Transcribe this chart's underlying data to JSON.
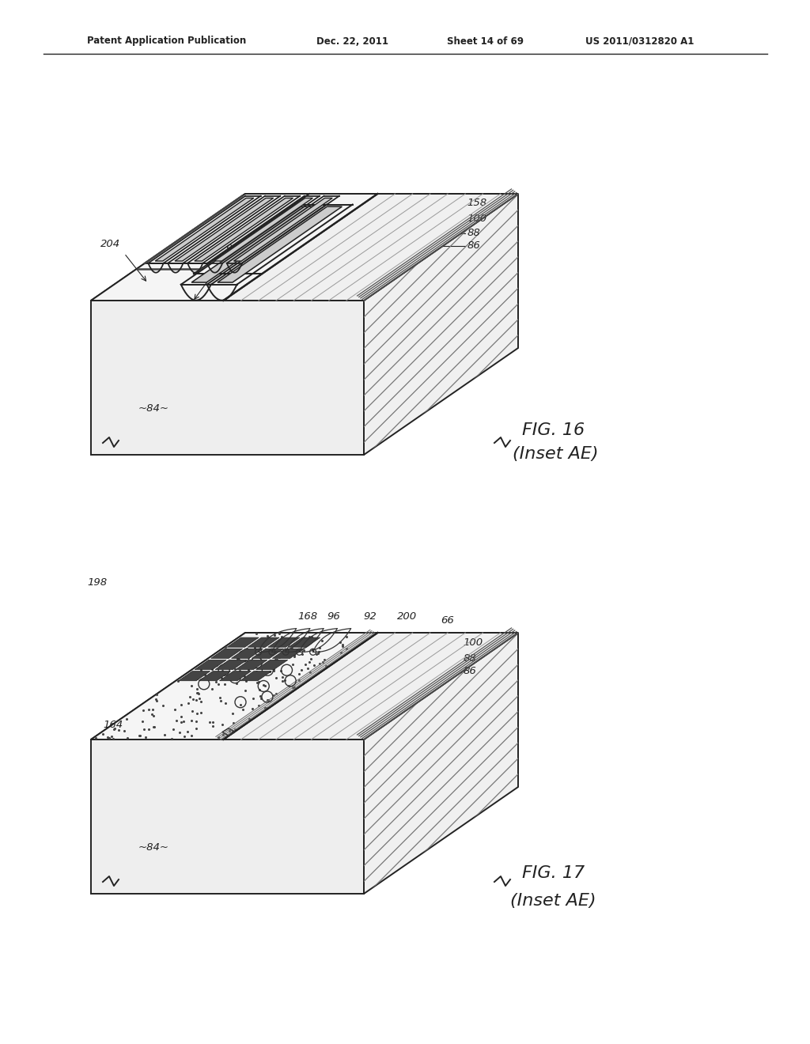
{
  "bg_color": "#ffffff",
  "line_color": "#222222",
  "fig_width": 10.24,
  "fig_height": 13.2,
  "header_text": "Patent Application Publication",
  "header_date": "Dec. 22, 2011",
  "header_sheet": "Sheet 14 of 69",
  "header_patent": "US 2011/0312820 A1",
  "fig16_title": "FIG. 16",
  "fig16_subtitle": "(Inset AE)",
  "fig17_title": "FIG. 17",
  "fig17_subtitle": "(Inset AE)"
}
